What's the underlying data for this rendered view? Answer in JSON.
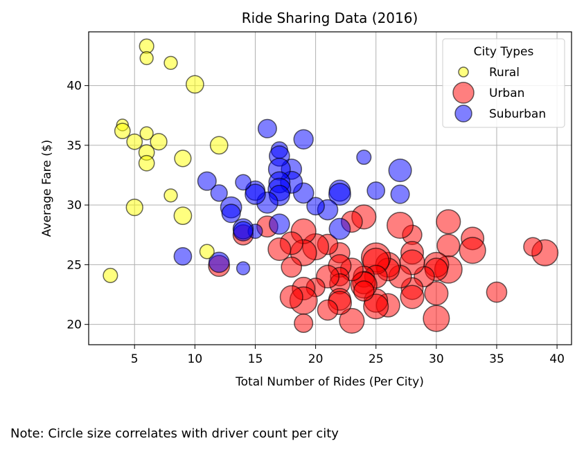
{
  "chart_data": {
    "type": "scatter",
    "title": "Ride Sharing Data (2016)",
    "xlabel": "Total Number of Rides (Per City)",
    "ylabel": "Average Fare ($)",
    "xlim": [
      1.2,
      41.2
    ],
    "ylim": [
      18.3,
      44.5
    ],
    "x_ticks": [
      5,
      10,
      15,
      20,
      25,
      30,
      35,
      40
    ],
    "y_ticks": [
      20,
      25,
      30,
      35,
      40
    ],
    "grid": true,
    "legend": {
      "title": "City Types",
      "placement": "top-right"
    },
    "bubble_size_meaning": "driver count per city",
    "series": [
      {
        "name": "Urban",
        "color": "#ff0000",
        "points": [
          [
            39,
            26.0,
            20
          ],
          [
            38,
            26.5,
            10
          ],
          [
            35,
            22.7,
            12
          ],
          [
            33,
            27.2,
            15
          ],
          [
            33,
            26.2,
            20
          ],
          [
            31,
            28.6,
            17
          ],
          [
            31,
            26.6,
            15
          ],
          [
            31,
            24.6,
            22
          ],
          [
            30,
            25.0,
            18
          ],
          [
            30,
            24.6,
            15
          ],
          [
            30,
            22.6,
            16
          ],
          [
            30,
            20.5,
            20
          ],
          [
            29,
            24.0,
            12
          ],
          [
            28,
            27.5,
            11
          ],
          [
            28,
            26.0,
            15
          ],
          [
            28,
            25.2,
            18
          ],
          [
            28,
            23.0,
            14
          ],
          [
            28,
            22.3,
            16
          ],
          [
            27,
            28.3,
            20
          ],
          [
            27,
            24.0,
            15
          ],
          [
            26,
            25.0,
            18
          ],
          [
            26,
            24.6,
            15
          ],
          [
            26,
            21.6,
            16
          ],
          [
            25,
            25.6,
            25
          ],
          [
            25,
            25.3,
            20
          ],
          [
            25,
            24.0,
            15
          ],
          [
            25,
            22.0,
            16
          ],
          [
            25,
            21.5,
            18
          ],
          [
            24,
            29.0,
            17
          ],
          [
            24,
            24.0,
            13
          ],
          [
            24,
            23.5,
            15
          ],
          [
            24,
            23.3,
            20
          ],
          [
            24,
            22.8,
            12
          ],
          [
            23,
            28.6,
            13
          ],
          [
            23,
            24.6,
            15
          ],
          [
            23,
            20.3,
            18
          ],
          [
            22,
            26.0,
            12
          ],
          [
            22,
            24.9,
            15
          ],
          [
            22,
            24.0,
            10
          ],
          [
            22,
            23.4,
            12
          ],
          [
            22,
            22.1,
            14
          ],
          [
            22,
            21.8,
            16
          ],
          [
            21,
            26.7,
            12
          ],
          [
            21,
            24.0,
            15
          ],
          [
            21,
            21.2,
            12
          ],
          [
            20,
            26.5,
            20
          ],
          [
            20,
            23.1,
            10
          ],
          [
            19,
            27.8,
            18
          ],
          [
            19,
            26.0,
            20
          ],
          [
            19,
            23.0,
            15
          ],
          [
            19,
            22.0,
            22
          ],
          [
            19,
            20.1,
            10
          ],
          [
            18,
            26.8,
            15
          ],
          [
            18,
            24.8,
            12
          ],
          [
            18,
            22.3,
            15
          ],
          [
            17,
            26.3,
            15
          ],
          [
            16,
            28.2,
            13
          ],
          [
            14,
            27.5,
            12
          ],
          [
            12,
            24.9,
            13
          ]
        ]
      },
      {
        "name": "Suburban",
        "color": "#0000ff",
        "points": [
          [
            27,
            32.9,
            15
          ],
          [
            27,
            30.9,
            10
          ],
          [
            25,
            31.2,
            9
          ],
          [
            24,
            34.0,
            6
          ],
          [
            22,
            31.2,
            13
          ],
          [
            22,
            30.9,
            14
          ],
          [
            22,
            28.0,
            13
          ],
          [
            21,
            29.6,
            12
          ],
          [
            20,
            29.9,
            9
          ],
          [
            19,
            35.5,
            11
          ],
          [
            19,
            31.0,
            12
          ],
          [
            18,
            33.0,
            12
          ],
          [
            18,
            31.9,
            14
          ],
          [
            17,
            34.6,
            8
          ],
          [
            17,
            34.1,
            12
          ],
          [
            17,
            33.0,
            14
          ],
          [
            17,
            31.9,
            13
          ],
          [
            17,
            31.3,
            15
          ],
          [
            17,
            30.8,
            12
          ],
          [
            17,
            28.4,
            12
          ],
          [
            16,
            36.4,
            10
          ],
          [
            16,
            30.2,
            13
          ],
          [
            15,
            31.2,
            11
          ],
          [
            15,
            30.9,
            12
          ],
          [
            15,
            27.8,
            6
          ],
          [
            14,
            31.9,
            7
          ],
          [
            14,
            28.0,
            12
          ],
          [
            14,
            27.8,
            11
          ],
          [
            14,
            24.7,
            5
          ],
          [
            13,
            29.8,
            13
          ],
          [
            13,
            29.3,
            10
          ],
          [
            12,
            31.0,
            8
          ],
          [
            12,
            25.2,
            12
          ],
          [
            11,
            32.0,
            10
          ],
          [
            9,
            25.7,
            9
          ]
        ]
      },
      {
        "name": "Rural",
        "color": "#ffff00",
        "points": [
          [
            10,
            40.1,
            9
          ],
          [
            12,
            35.0,
            9
          ],
          [
            9,
            33.9,
            8
          ],
          [
            9,
            29.1,
            9
          ],
          [
            11,
            26.1,
            6
          ],
          [
            8,
            41.9,
            5
          ],
          [
            8,
            30.8,
            5
          ],
          [
            7,
            35.3,
            8
          ],
          [
            6,
            43.3,
            6
          ],
          [
            6,
            42.3,
            5
          ],
          [
            6,
            36.0,
            5
          ],
          [
            6,
            34.4,
            7
          ],
          [
            6,
            33.5,
            7
          ],
          [
            5,
            35.3,
            7
          ],
          [
            5,
            29.8,
            8
          ],
          [
            4,
            36.7,
            4
          ],
          [
            4,
            36.2,
            7
          ],
          [
            3,
            24.1,
            6
          ]
        ]
      }
    ],
    "legend_items": [
      "Rural",
      "Urban",
      "Suburban"
    ],
    "note": "Note: Circle size correlates with driver count per city"
  }
}
